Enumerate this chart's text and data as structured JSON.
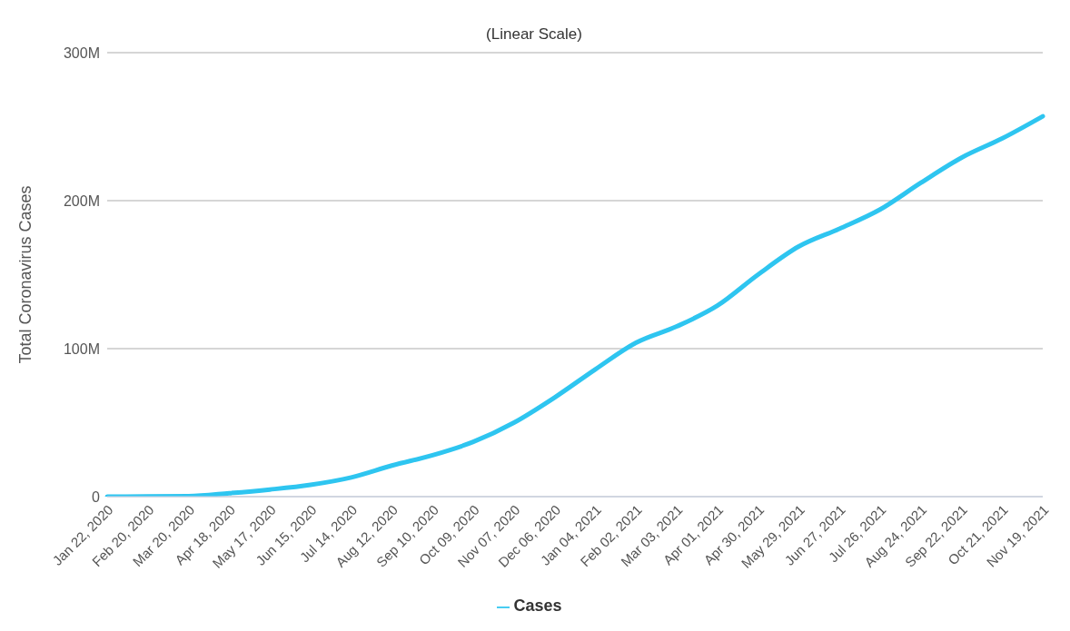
{
  "chart_data": {
    "type": "line",
    "title": "(Linear Scale)",
    "ylabel": "Total Coronavirus Cases",
    "categories": [
      "Jan 22, 2020",
      "Feb 20, 2020",
      "Mar 20, 2020",
      "Apr 18, 2020",
      "May 17, 2020",
      "Jun 15, 2020",
      "Jul 14, 2020",
      "Aug 12, 2020",
      "Sep 10, 2020",
      "Oct 09, 2020",
      "Nov 07, 2020",
      "Dec 06, 2020",
      "Jan 04, 2021",
      "Feb 02, 2021",
      "Mar 03, 2021",
      "Apr 01, 2021",
      "Apr 30, 2021",
      "May 29, 2021",
      "Jun 27, 2021",
      "Jul 26, 2021",
      "Aug 24, 2021",
      "Sep 22, 2021",
      "Oct 21, 2021",
      "Nov 19, 2021"
    ],
    "series": [
      {
        "name": "Cases",
        "color": "#2ec5f0",
        "values": [
          0,
          100000,
          300000,
          2300000,
          4800000,
          8000000,
          13000000,
          21000000,
          28000000,
          37000000,
          50000000,
          67000000,
          86000000,
          104000000,
          115000000,
          129000000,
          150000000,
          169000000,
          181000000,
          194000000,
          212000000,
          229000000,
          242000000,
          257000000
        ]
      }
    ],
    "ylim": [
      0,
      300000000
    ],
    "yticks": [
      {
        "value": 0,
        "label": "0"
      },
      {
        "value": 100000000,
        "label": "100M"
      },
      {
        "value": 200000000,
        "label": "200M"
      },
      {
        "value": 300000000,
        "label": "300M"
      }
    ],
    "grid": "y",
    "legend": "bottom",
    "marker": "none",
    "line_style": "solid"
  }
}
